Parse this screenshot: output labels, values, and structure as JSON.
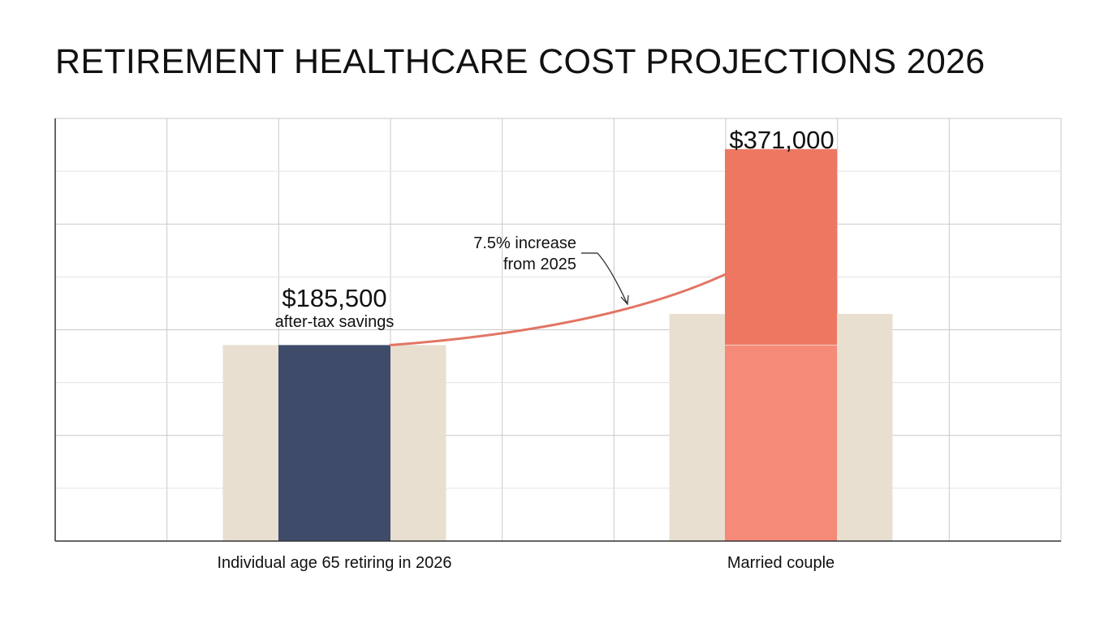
{
  "page": {
    "title": "RETIREMENT HEALTHCARE COST PROJECTIONS 2026"
  },
  "colors": {
    "background": "#ffffff",
    "grid": "#c9c9c9",
    "axis": "#333333",
    "context_bar": "#e8dfd0",
    "individual_bar": "#3e4c6a",
    "couple_bar_upper": "#ee7762",
    "couple_bar_lower": "#f48a77",
    "connector": "#e27564",
    "text": "#111111"
  },
  "chart_data": {
    "type": "bar",
    "title": "RETIREMENT HEALTHCARE COST PROJECTIONS 2026",
    "xlabel": "",
    "ylabel": "",
    "ylim": [
      0,
      400000
    ],
    "grid": true,
    "categories": [
      "Individual age 65 retiring in 2026",
      "Married couple"
    ],
    "values": [
      185500,
      371000
    ],
    "value_labels": [
      "$185,500",
      "$371,000"
    ],
    "value_sublabels": [
      "after-tax savings",
      ""
    ],
    "context_values": [
      185500,
      215000
    ],
    "split_at": 185500,
    "annotation": {
      "lines": [
        "7.5% increase",
        "from 2025"
      ]
    }
  }
}
